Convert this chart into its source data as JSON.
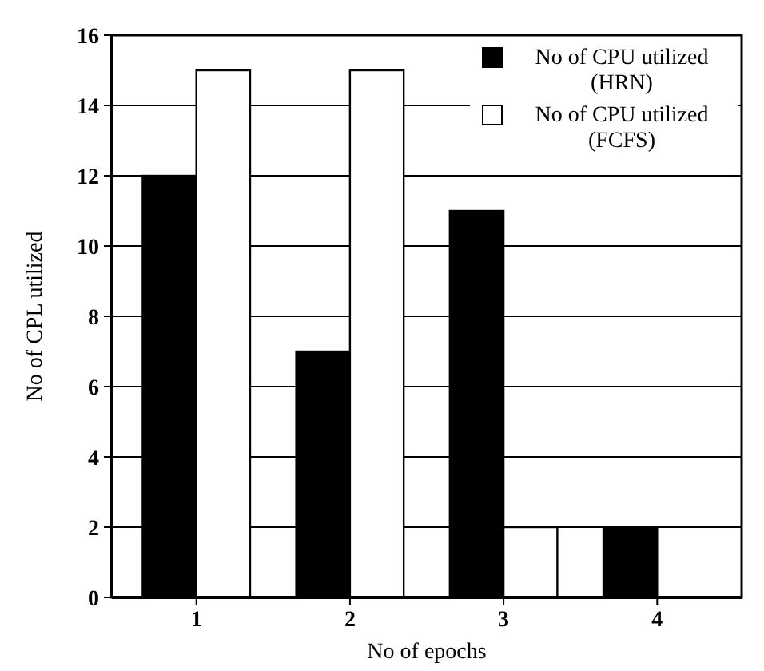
{
  "chart_data": {
    "type": "bar",
    "xlabel": "No of epochs",
    "ylabel": "No of CPL utilized",
    "categories": [
      "1",
      "2",
      "3",
      "4"
    ],
    "series": [
      {
        "name": "No of CPU utilized (HRN)",
        "color": "#000000",
        "values": [
          12,
          7,
          11,
          2
        ]
      },
      {
        "name": "No of CPU utilized (FCFS)",
        "color": "#ffffff",
        "values": [
          15,
          15,
          2,
          null
        ]
      }
    ],
    "ylim": [
      0,
      16
    ],
    "yticks": [
      0,
      2,
      4,
      6,
      8,
      10,
      12,
      14,
      16
    ],
    "grid": "y",
    "legend": "top right"
  }
}
